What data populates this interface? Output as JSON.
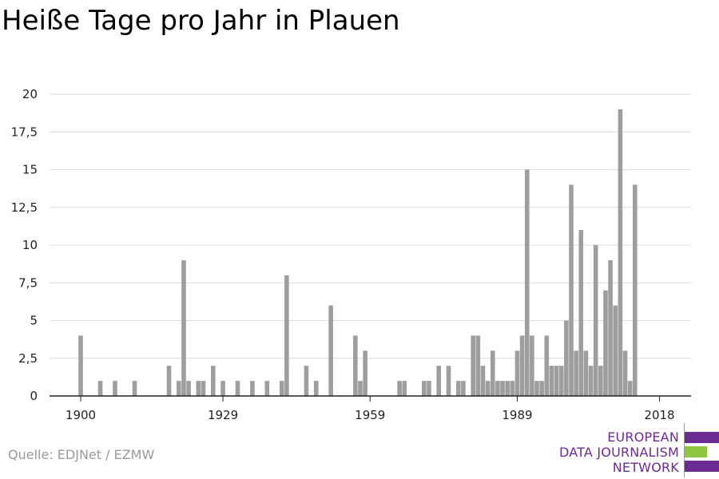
{
  "chart_data": {
    "type": "bar",
    "title": "Heiße Tage pro Jahr in Plauen",
    "xlabel": "",
    "ylabel": "",
    "x_start": 1900,
    "x_end": 2019,
    "ylim": [
      0,
      20
    ],
    "y_ticks": [
      "0",
      "2,5",
      "5",
      "7,5",
      "10",
      "12,5",
      "15",
      "17,5",
      "20"
    ],
    "y_tick_values": [
      0,
      2.5,
      5,
      7.5,
      10,
      12.5,
      15,
      17.5,
      20
    ],
    "x_ticks": [
      "1900",
      "1929",
      "1959",
      "1989",
      "2018"
    ],
    "x_tick_values": [
      1900,
      1929,
      1959,
      1989,
      2018
    ],
    "grid": true,
    "bar_color": "#9e9e9e",
    "x": [
      1900,
      1904,
      1907,
      1911,
      1918,
      1920,
      1921,
      1922,
      1924,
      1925,
      1927,
      1929,
      1932,
      1935,
      1938,
      1941,
      1942,
      1946,
      1948,
      1951,
      1956,
      1957,
      1958,
      1965,
      1966,
      1970,
      1971,
      1973,
      1975,
      1977,
      1978,
      1980,
      1981,
      1982,
      1983,
      1984,
      1985,
      1986,
      1987,
      1988,
      1989,
      1990,
      1991,
      1992,
      1993,
      1994,
      1995,
      1996,
      1997,
      1998,
      1999,
      2000,
      2001,
      2002,
      2003,
      2004,
      2005,
      2006,
      2007,
      2008,
      2009,
      2010,
      2011,
      2012,
      2013,
      2014,
      2015,
      2016,
      2017,
      2018
    ],
    "values": [
      4,
      1,
      1,
      1,
      2,
      1,
      9,
      1,
      1,
      1,
      2,
      1,
      1,
      1,
      1,
      1,
      8,
      2,
      1,
      6,
      4,
      1,
      3,
      1,
      1,
      1,
      1,
      2,
      2,
      1,
      1,
      4,
      4,
      2,
      1,
      3,
      1,
      1,
      1,
      1,
      3,
      4,
      15,
      4,
      1,
      1,
      4,
      2,
      2,
      2,
      5,
      14,
      3,
      11,
      3,
      2,
      10,
      2,
      7,
      9,
      6,
      19,
      3,
      1,
      14,
      0,
      0,
      0,
      0,
      0
    ]
  },
  "source": "Quelle: EDJNet / EZMW",
  "logo": {
    "lines": [
      "EUROPEAN",
      "DATA JOURNALISM",
      "NETWORK"
    ],
    "text_color": "#6b2c91",
    "bar_colors": [
      "#6b2c91",
      "#8dc63f",
      "#6b2c91"
    ]
  }
}
